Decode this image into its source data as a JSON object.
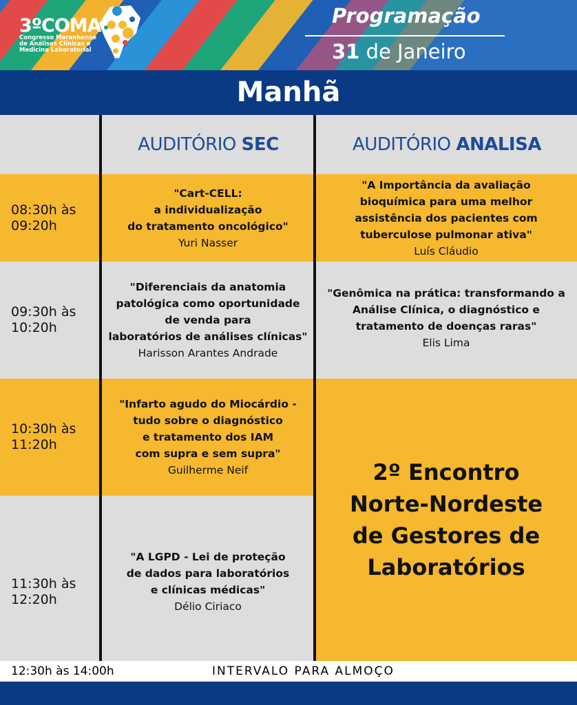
{
  "header": {
    "logo_number": "3º",
    "logo_name": "COMAC",
    "logo_subtitle": [
      "Congresso Maranhense",
      "de Análises Clínicas e",
      "Medicina Laboratorial"
    ],
    "title": "Programação",
    "date_day": "31",
    "date_rest": "de Janeiro"
  },
  "period": "Manhã",
  "columns": [
    {
      "light": "AUDITÓRIO",
      "bold": "SEC"
    },
    {
      "light": "AUDITÓRIO",
      "bold": "ANALISA"
    }
  ],
  "rows": [
    {
      "time": [
        "08:30h às",
        "09:20h"
      ],
      "sec": {
        "title": [
          "\"Cart-CELL:",
          "a individualização",
          "do tratamento oncológico\""
        ],
        "speaker": "Yuri Nasser"
      },
      "analisa": {
        "title": [
          "\"A Importância da avaliação",
          "bioquímica para uma melhor",
          "assistência dos pacientes com",
          "tuberculose pulmonar ativa\""
        ],
        "speaker": "Luís Cláudio"
      }
    },
    {
      "time": [
        "09:30h às",
        "10:20h"
      ],
      "sec": {
        "title": [
          "\"Diferenciais da anatomia",
          "patológica como oportunidade",
          "de venda para",
          "laboratórios de análises clínicas\""
        ],
        "speaker": "Harisson Arantes Andrade"
      },
      "analisa": {
        "title": [
          "\"Genômica na prática: transformando a",
          "Análise Clínica, o diagnóstico e",
          "tratamento de doenças raras\""
        ],
        "speaker": "Elis Lima"
      }
    },
    {
      "time": [
        "10:30h às",
        "11:20h"
      ],
      "sec": {
        "title": [
          "\"Infarto agudo do Miocárdio -",
          "tudo sobre o diagnóstico",
          "e tratamento dos IAM",
          "com supra e sem supra\""
        ],
        "speaker": "Guilherme Neif"
      }
    },
    {
      "time": [
        "11:30h às",
        "12:20h"
      ],
      "sec": {
        "title": [
          "\"A LGPD - Lei de proteção",
          "de dados para laboratórios",
          "e clínicas médicas\""
        ],
        "speaker": "Délio Ciriaco"
      }
    }
  ],
  "special_event": [
    "2º Encontro",
    "Norte-Nordeste",
    "de Gestores de",
    "Laboratórios"
  ],
  "break": {
    "time": "12:30h às 14:00h",
    "label": "INTERVALO PARA ALMOÇO"
  },
  "colors": {
    "navy": "#0b3a84",
    "yellow": "#f5b82e",
    "gray": "#dddddd"
  }
}
